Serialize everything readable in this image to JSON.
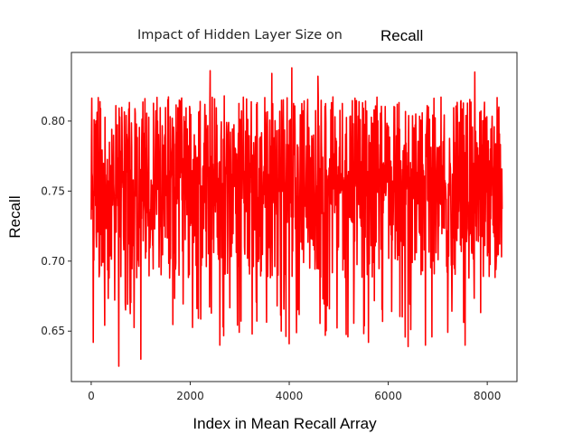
{
  "chart_data": {
    "type": "line",
    "title_prefix": "Impact of Hidden Layer Size on",
    "title_overlay": "Recall",
    "xlabel": "Index in Mean Recall Array",
    "ylabel": "Recall",
    "xlim": [
      -400,
      8600
    ],
    "ylim": [
      0.614,
      0.849
    ],
    "x_ticks": [
      0,
      2000,
      4000,
      6000,
      8000
    ],
    "x_tick_labels": [
      "0",
      "2000",
      "4000",
      "6000",
      "8000"
    ],
    "y_ticks": [
      0.65,
      0.7,
      0.75,
      0.8
    ],
    "y_tick_labels": [
      "0.65",
      "0.70",
      "0.75",
      "0.80"
    ],
    "grid": false,
    "line_color": "#ff0000",
    "series": [
      {
        "x_start": 0,
        "x_end": 8300,
        "n_points": 8300,
        "mean": 0.755,
        "typical_range": [
          0.675,
          0.83
        ],
        "overall_min": 0.625,
        "overall_max": 0.838,
        "marked_peaks": [
          {
            "x": 2400,
            "y": 0.836
          },
          {
            "x": 4050,
            "y": 0.838
          },
          {
            "x": 7750,
            "y": 0.835
          },
          {
            "x": 4580,
            "y": 0.832
          },
          {
            "x": 3650,
            "y": 0.834
          },
          {
            "x": 5600,
            "y": 0.831
          }
        ],
        "marked_troughs": [
          {
            "x": 40,
            "y": 0.642
          },
          {
            "x": 560,
            "y": 0.625
          },
          {
            "x": 1000,
            "y": 0.63
          },
          {
            "x": 2600,
            "y": 0.64
          },
          {
            "x": 4000,
            "y": 0.641
          },
          {
            "x": 5600,
            "y": 0.642
          },
          {
            "x": 6400,
            "y": 0.639
          },
          {
            "x": 6750,
            "y": 0.64
          },
          {
            "x": 7550,
            "y": 0.64
          }
        ]
      }
    ]
  }
}
